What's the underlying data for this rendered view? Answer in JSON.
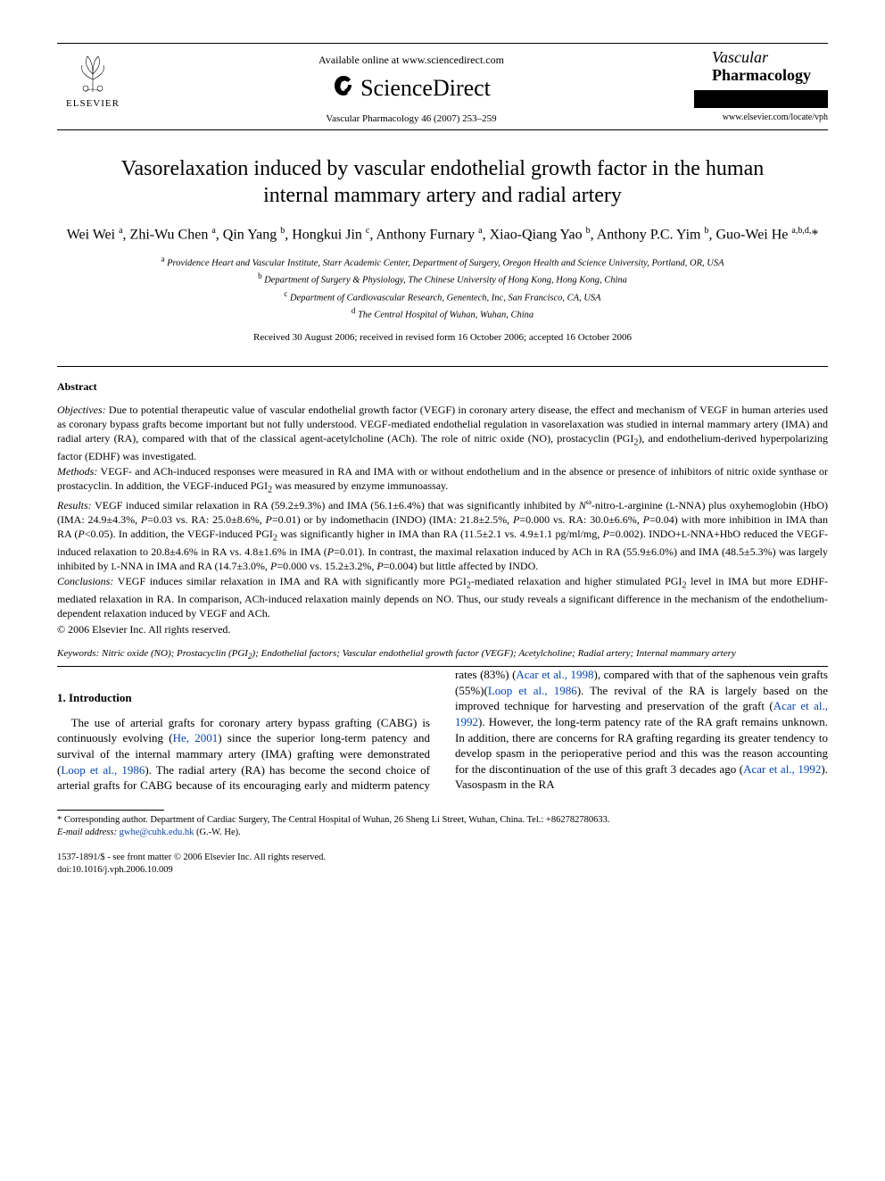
{
  "header": {
    "elsevier_label": "ELSEVIER",
    "available_line": "Available online at www.sciencedirect.com",
    "sd_name_1": "Science",
    "sd_name_2": "Direct",
    "journal_ref": "Vascular Pharmacology 46 (2007) 253–259",
    "journal_title_line1": "Vascular",
    "journal_title_line2": "Pharmacology",
    "journal_url": "www.elsevier.com/locate/vph",
    "colors": {
      "text": "#000000",
      "bg": "#ffffff",
      "link": "#0645ad",
      "rule": "#000000"
    },
    "fonts": {
      "body_family": "Times New Roman, serif",
      "title_size_pt": 18,
      "body_size_pt": 10,
      "abstract_size_pt": 9
    }
  },
  "title": "Vasorelaxation induced by vascular endothelial growth factor in the human internal mammary artery and radial artery",
  "authors_html": "Wei Wei <sup>a</sup>, Zhi-Wu Chen <sup>a</sup>, Qin Yang <sup>b</sup>, Hongkui Jin <sup>c</sup>, Anthony Furnary <sup>a</sup>, Xiao-Qiang Yao <sup>b</sup>, Anthony P.C. Yim <sup>b</sup>, Guo-Wei He <sup>a,b,d,</sup>*",
  "affiliations": [
    "<sup>a</sup> Providence Heart and Vascular Institute, Starr Academic Center, Department of Surgery, Oregon Health and Science University, Portland, OR, USA",
    "<sup>b</sup> Department of Surgery & Physiology, The Chinese University of Hong Kong, Hong Kong, China",
    "<sup>c</sup> Department of Cardiovascular Research, Genentech, Inc, San Francisco, CA, USA",
    "<sup>d</sup> The Central Hospital of Wuhan, Wuhan, China"
  ],
  "dates": "Received 30 August 2006; received in revised form 16 October 2006; accepted 16 October 2006",
  "abstract": {
    "heading": "Abstract",
    "objectives": "<span class='label'>Objectives:</span> Due to potential therapeutic value of vascular endothelial growth factor (VEGF) in coronary artery disease, the effect and mechanism of VEGF in human arteries used as coronary bypass grafts become important but not fully understood. VEGF-mediated endothelial regulation in vasorelaxation was studied in internal mammary artery (IMA) and radial artery (RA), compared with that of the classical agent-acetylcholine (ACh). The role of nitric oxide (NO), prostacyclin (PGI<sub>2</sub>), and endothelium-derived hyperpolarizing factor (EDHF) was investigated.",
    "methods": "<span class='label'>Methods:</span> VEGF- and ACh-induced responses were measured in RA and IMA with or without endothelium and in the absence or presence of inhibitors of nitric oxide synthase or prostacyclin. In addition, the VEGF-induced PGI<sub>2</sub> was measured by enzyme immunoassay.",
    "results": "<span class='label'>Results:</span> VEGF induced similar relaxation in RA (59.2±9.3%) and IMA (56.1±6.4%) that was significantly inhibited by <i>N</i><sup>ω</sup>-nitro-<small>L</small>-arginine (<small>L</small>-NNA) plus oxyhemoglobin (HbO) (IMA: 24.9±4.3%, <i>P</i>=0.03 vs. RA: 25.0±8.6%, <i>P</i>=0.01) or by indomethacin (INDO) (IMA: 21.8±2.5%, <i>P</i>=0.000 vs. RA: 30.0±6.6%, <i>P</i>=0.04) with more inhibition in IMA than RA (<i>P</i>&lt;0.05). In addition, the VEGF-induced PGI<sub>2</sub> was significantly higher in IMA than RA (11.5±2.1 vs. 4.9±1.1 pg/ml/mg, <i>P</i>=0.002). INDO+<small>L</small>-NNA+HbO reduced the VEGF-induced relaxation to 20.8±4.6% in RA vs. 4.8±1.6% in IMA (<i>P</i>=0.01). In contrast, the maximal relaxation induced by ACh in RA (55.9±6.0%) and IMA (48.5±5.3%) was largely inhibited by <small>L</small>-NNA in IMA and RA (14.7±3.0%, <i>P</i>=0.000 vs. 15.2±3.2%, <i>P</i>=0.004) but little affected by INDO.",
    "conclusions": "<span class='label'>Conclusions:</span> VEGF induces similar relaxation in IMA and RA with significantly more PGI<sub>2</sub>-mediated relaxation and higher stimulated PGI<sub>2</sub> level in IMA but more EDHF-mediated relaxation in RA. In comparison, ACh-induced relaxation mainly depends on NO. Thus, our study reveals a significant difference in the mechanism of the endothelium-dependent relaxation induced by VEGF and ACh.",
    "copyright": "© 2006 Elsevier Inc. All rights reserved."
  },
  "keywords": "<span class='kw-label'>Keywords:</span> Nitric oxide (NO); Prostacyclin (PGI<sub>2</sub>); Endothelial factors; Vascular endothelial growth factor (VEGF); Acetylcholine; Radial artery; Internal mammary artery",
  "section1": {
    "heading": "1. Introduction",
    "para": "The use of arterial grafts for coronary artery bypass grafting (CABG) is continuously evolving (<span class='link'>He, 2001</span>) since the superior long-term patency and survival of the internal mammary artery (IMA) grafting were demonstrated (<span class='link'>Loop et al., 1986</span>). The radial artery (RA) has become the second choice of arterial grafts for CABG because of its encouraging early and midterm patency rates (83%) (<span class='link'>Acar et al., 1998</span>), compared with that of the saphenous vein grafts (55%)(<span class='link'>Loop et al., 1986</span>). The revival of the RA is largely based on the improved technique for harvesting and preservation of the graft (<span class='link'>Acar et al., 1992</span>). However, the long-term patency rate of the RA graft remains unknown. In addition, there are concerns for RA grafting regarding its greater tendency to develop spasm in the perioperative period and this was the reason accounting for the discontinuation of the use of this graft 3 decades ago (<span class='link'>Acar et al., 1992</span>). Vasospasm in the RA"
  },
  "footnotes": {
    "corr": "* Corresponding author. Department of Cardiac Surgery, The Central Hospital of Wuhan, 26 Sheng Li Street, Wuhan, China. Tel.: +862782780633.",
    "email_label": "E-mail address:",
    "email": "gwhe@cuhk.edu.hk",
    "email_tail": " (G.-W. He)."
  },
  "bottom": {
    "line1": "1537-1891/$ - see front matter © 2006 Elsevier Inc. All rights reserved.",
    "line2": "doi:10.1016/j.vph.2006.10.009"
  }
}
